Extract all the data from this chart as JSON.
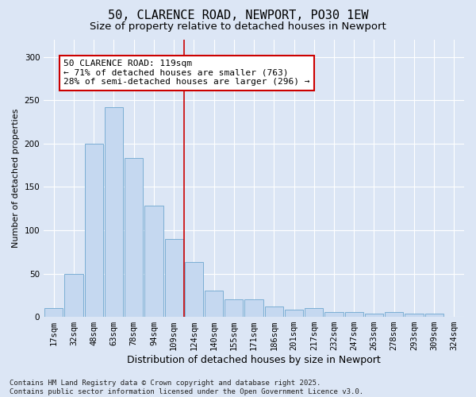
{
  "title": "50, CLARENCE ROAD, NEWPORT, PO30 1EW",
  "subtitle": "Size of property relative to detached houses in Newport",
  "xlabel": "Distribution of detached houses by size in Newport",
  "ylabel": "Number of detached properties",
  "categories": [
    "17sqm",
    "32sqm",
    "48sqm",
    "63sqm",
    "78sqm",
    "94sqm",
    "109sqm",
    "124sqm",
    "140sqm",
    "155sqm",
    "171sqm",
    "186sqm",
    "201sqm",
    "217sqm",
    "232sqm",
    "247sqm",
    "263sqm",
    "278sqm",
    "293sqm",
    "309sqm",
    "324sqm"
  ],
  "values": [
    10,
    50,
    200,
    242,
    183,
    128,
    90,
    63,
    30,
    20,
    20,
    12,
    8,
    10,
    6,
    6,
    4,
    6,
    4,
    4,
    0
  ],
  "bar_color": "#c5d8f0",
  "bar_edge_color": "#7baed4",
  "vline_color": "#cc0000",
  "annotation_text": "50 CLARENCE ROAD: 119sqm\n← 71% of detached houses are smaller (763)\n28% of semi-detached houses are larger (296) →",
  "annotation_box_color": "white",
  "annotation_box_edge_color": "#cc0000",
  "ylim": [
    0,
    320
  ],
  "yticks": [
    0,
    50,
    100,
    150,
    200,
    250,
    300
  ],
  "bg_color": "#dce6f5",
  "grid_color": "#ffffff",
  "footer_text": "Contains HM Land Registry data © Crown copyright and database right 2025.\nContains public sector information licensed under the Open Government Licence v3.0.",
  "title_fontsize": 11,
  "subtitle_fontsize": 9.5,
  "xlabel_fontsize": 9,
  "ylabel_fontsize": 8,
  "tick_fontsize": 7.5,
  "annotation_fontsize": 8,
  "footer_fontsize": 6.5,
  "vline_bar_index": 7
}
